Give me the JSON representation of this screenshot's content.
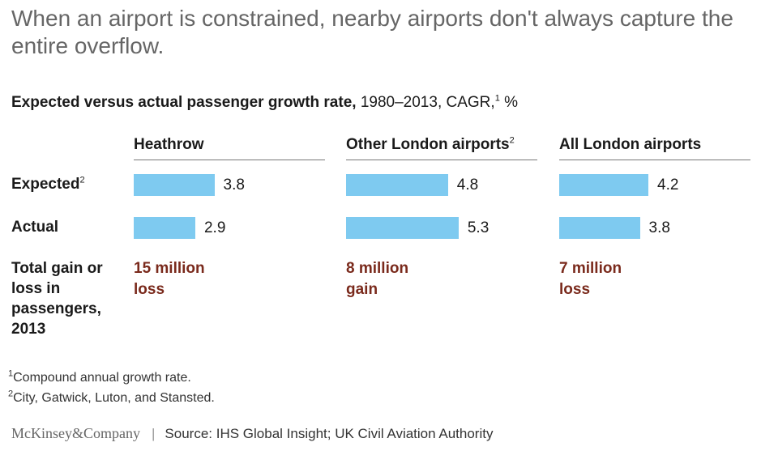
{
  "title": "When an airport is constrained, nearby airports don't always capture the entire overflow.",
  "subtitle": {
    "bold": "Expected versus actual passenger growth rate,",
    "rest": "1980–2013, CAGR,",
    "sup": "1",
    "unit": "%"
  },
  "row_labels": {
    "expected": "Expected",
    "expected_sup": "2",
    "actual": "Actual",
    "total": "Total gain or loss in passengers, 2013"
  },
  "colors": {
    "bar": "#7ecaf0",
    "gain_text": "#7a2a1c"
  },
  "chart_data": {
    "type": "bar",
    "title": "Expected versus actual passenger growth rate, 1980–2013, CAGR, %",
    "panels": [
      {
        "name": "Heathrow",
        "sup": "",
        "expected": 3.8,
        "actual": 2.9,
        "gain_loss": "15 million loss"
      },
      {
        "name": "Other London airports",
        "sup": "2",
        "expected": 4.8,
        "actual": 5.3,
        "gain_loss": "8 million gain"
      },
      {
        "name": "All London airports",
        "sup": "",
        "expected": 4.2,
        "actual": 3.8,
        "gain_loss": "7 million loss"
      }
    ]
  },
  "footnotes": [
    {
      "marker": "1",
      "text": "Compound annual growth rate."
    },
    {
      "marker": "2",
      "text": "City, Gatwick, Luton, and Stansted."
    }
  ],
  "footer": {
    "logo": "McKinsey&Company",
    "separator": "|",
    "source": "Source: IHS Global Insight; UK Civil Aviation Authority"
  }
}
